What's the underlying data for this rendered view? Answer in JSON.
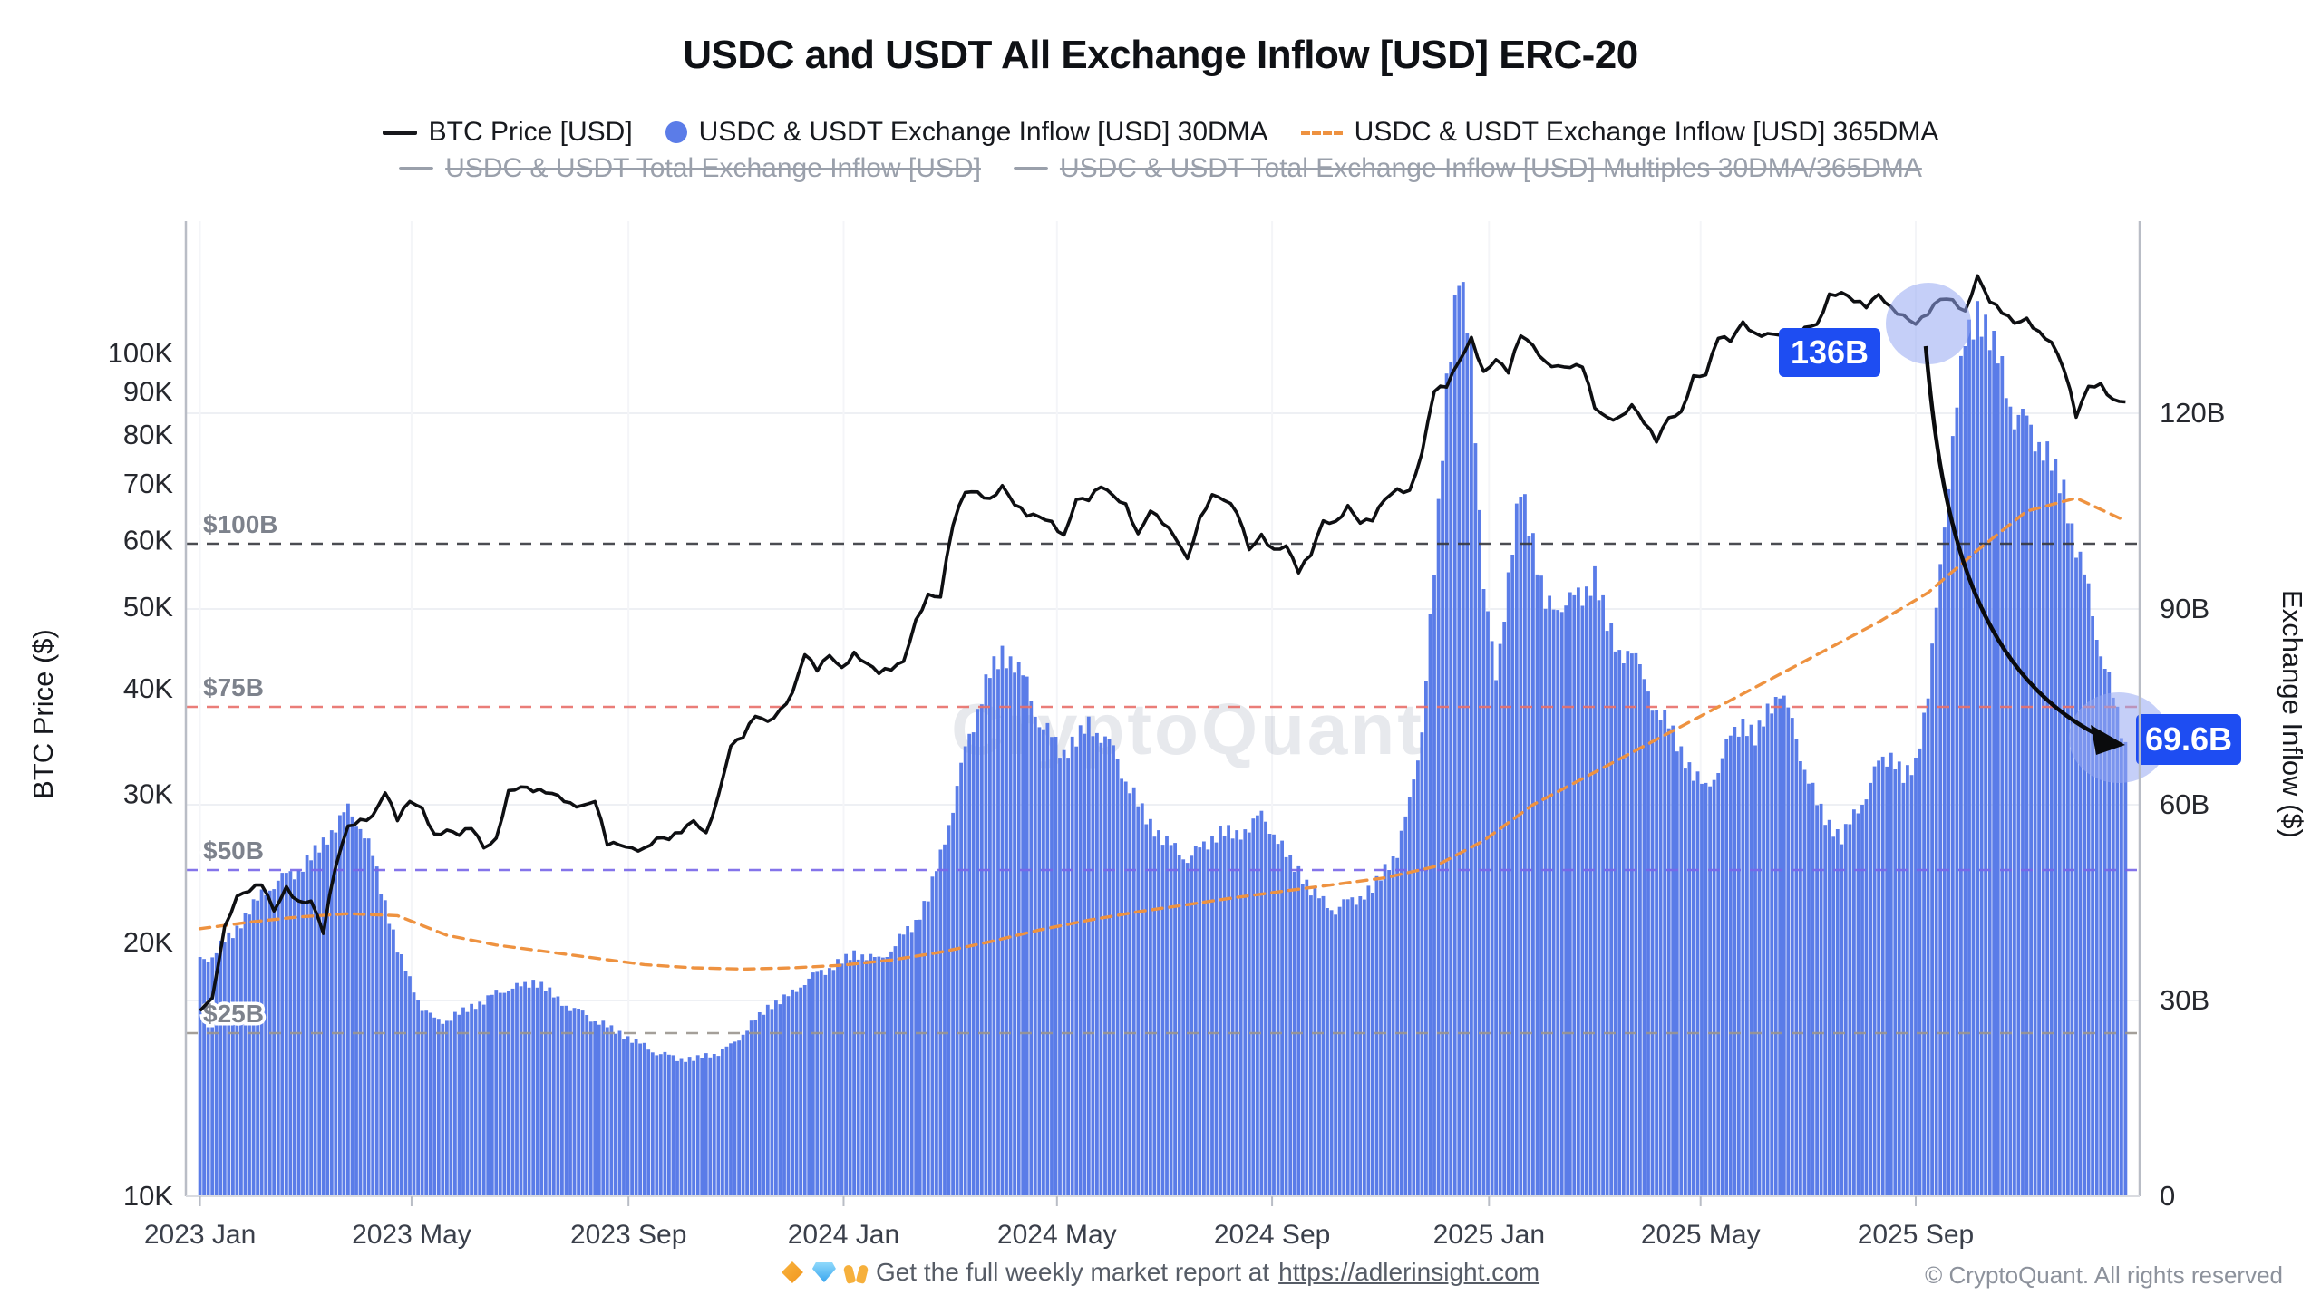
{
  "title": "USDC and USDT All Exchange Inflow [USD] ERC-20",
  "legend": {
    "items": [
      {
        "label": "BTC Price [USD]",
        "marker": "line",
        "color": "#17181c",
        "disabled": false
      },
      {
        "label": "USDC & USDT Exchange Inflow [USD] 30DMA",
        "marker": "circle",
        "color": "#5b7ce8",
        "disabled": false
      },
      {
        "label": "USDC & USDT Exchange Inflow [USD] 365DMA",
        "marker": "dashed-line",
        "color": "#ee9240",
        "disabled": false
      },
      {
        "label": "USDC & USDT Total Exchange Inflow [USD]",
        "marker": "line",
        "color": "#9aa0ab",
        "disabled": true
      },
      {
        "label": "USDC & USDT Total Exchange Inflow [USD] Multiples 30DMA/365DMA",
        "marker": "line",
        "color": "#9aa0ab",
        "disabled": true
      }
    ]
  },
  "left_axis": {
    "title": "BTC Price ($)",
    "scale": "log",
    "tick_labels": [
      "10K",
      "20K",
      "30K",
      "40K",
      "50K",
      "60K",
      "70K",
      "80K",
      "90K",
      "100K"
    ],
    "tick_values": [
      10,
      20,
      30,
      40,
      50,
      60,
      70,
      80,
      90,
      100
    ]
  },
  "right_axis": {
    "title": "Exchange Inflow ($)",
    "tick_labels": [
      "0",
      "30B",
      "60B",
      "90B",
      "120B"
    ],
    "tick_values": [
      0,
      30,
      60,
      90,
      120
    ]
  },
  "x_axis": {
    "tick_labels": [
      "2023 Jan",
      "2023 May",
      "2023 Sep",
      "2024 Jan",
      "2024 May",
      "2024 Sep",
      "2025 Jan",
      "2025 May",
      "2025 Sep"
    ],
    "tick_day_offsets": [
      0,
      120,
      243,
      365,
      486,
      608,
      731,
      851,
      973
    ]
  },
  "thresholds": [
    {
      "label": "$100B",
      "value": 100,
      "color": "#37393f"
    },
    {
      "label": "$75B",
      "value": 75,
      "color": "#e8706a"
    },
    {
      "label": "$50B",
      "value": 50,
      "color": "#7766e8"
    },
    {
      "label": "$25B",
      "value": 25,
      "color": "#9b958f"
    }
  ],
  "annotations": {
    "peak": {
      "label": "136B",
      "value": 136,
      "badge_color": "#1e4df2"
    },
    "latest": {
      "label": "69.6B",
      "value": 69.6,
      "badge_color": "#1e4df2"
    }
  },
  "watermark": "CryptoQuant",
  "footer": {
    "icons": [
      "orange-diamond",
      "gem",
      "raising-hands"
    ],
    "text": "Get the full weekly market report at",
    "link": "https://adlerinsight.com",
    "copyright": "© CryptoQuant. All rights reserved"
  },
  "chart_data": {
    "type": "mixed",
    "x_start": "2023-01-01",
    "x_end": "2025-12-28",
    "grid": "horizontal",
    "legend_position": "top",
    "left_range_k": [
      10,
      140
    ],
    "right_range_b": [
      0,
      150
    ],
    "series": [
      {
        "name": "BTC Price [USD]",
        "type": "line",
        "axis": "left",
        "unit": "thousand USD",
        "interval_days": 7,
        "color": "#0e0f12",
        "values": [
          16.6,
          17.2,
          20.9,
          22.7,
          23.0,
          23.4,
          21.8,
          23.3,
          22.4,
          22.4,
          20.5,
          24.6,
          27.5,
          28.0,
          28.3,
          30.1,
          27.9,
          29.4,
          28.9,
          26.9,
          27.2,
          26.8,
          27.3,
          25.9,
          26.6,
          30.3,
          30.6,
          30.2,
          30.1,
          29.9,
          29.3,
          29.1,
          29.4,
          26.1,
          26.1,
          25.9,
          25.9,
          26.6,
          26.5,
          27.0,
          27.9,
          27.0,
          29.9,
          34.2,
          35.0,
          37.1,
          36.6,
          37.8,
          39.6,
          43.9,
          42.0,
          43.8,
          42.4,
          44.2,
          42.9,
          41.7,
          42.1,
          43.1,
          48.3,
          51.8,
          51.4,
          62.5,
          68.4,
          68.5,
          67.3,
          69.7,
          66.1,
          64.1,
          64.0,
          63.2,
          60.9,
          67.1,
          66.9,
          69.4,
          67.8,
          66.3,
          61.1,
          65.0,
          62.8,
          60.4,
          57.1,
          63.8,
          68.0,
          66.9,
          64.7,
          58.5,
          61.0,
          58.6,
          59.1,
          54.9,
          57.6,
          63.3,
          63.2,
          66.0,
          62.9,
          63.3,
          67.1,
          69.1,
          68.8,
          76.2,
          90.1,
          91.2,
          97.8,
          104.5,
          95.2,
          98.3,
          94.8,
          104.9,
          102.2,
          97.8,
          96.7,
          96.2,
          96.3,
          86.1,
          84.0,
          84.1,
          86.9,
          82.6,
          78.5,
          83.9,
          85.3,
          94.1,
          94.3,
          104.2,
          103.3,
          109.0,
          105.7,
          105.6,
          105.1,
          101.2,
          107.4,
          108.3,
          117.6,
          118.1,
          115.2,
          113.3,
          117.5,
          113.6,
          111.1,
          108.3,
          111.2,
          115.9,
          115.8,
          112.3,
          123.6,
          115.1,
          111.6,
          108.6,
          110.1,
          106.2,
          103.1,
          95.7,
          84.0,
          91.4,
          92.1,
          88.2,
          87.6
        ]
      },
      {
        "name": "USDC & USDT Exchange Inflow [USD] 30DMA",
        "type": "bar",
        "axis": "right",
        "unit": "billion USD",
        "interval_days": 7,
        "color": "#5a7ce8",
        "values": [
          36,
          37,
          39,
          41,
          44,
          46,
          48,
          49,
          50,
          52,
          54,
          57,
          59,
          57,
          52,
          45,
          38,
          33,
          29,
          27,
          27,
          28,
          29,
          30,
          31,
          32,
          32,
          33,
          32,
          30,
          29,
          28,
          27,
          26,
          25,
          24,
          23,
          22,
          21.5,
          21,
          21,
          21.5,
          22,
          23,
          25,
          27,
          29,
          30,
          31,
          33,
          34,
          35,
          36,
          37,
          37,
          36,
          38,
          40,
          42,
          46,
          52,
          60,
          68,
          75,
          80,
          83,
          82,
          78,
          73,
          70,
          68,
          70,
          72,
          71,
          68,
          64,
          60,
          57,
          55,
          53,
          52,
          53,
          55,
          56,
          55,
          57,
          58,
          56,
          52,
          50,
          47,
          45,
          44,
          45,
          46,
          47,
          50,
          53,
          60,
          72,
          95,
          125,
          142,
          128,
          95,
          78,
          96,
          108,
          100,
          92,
          88,
          94,
          90,
          96,
          88,
          82,
          85,
          78,
          75,
          72,
          68,
          65,
          62,
          66,
          70,
          73,
          70,
          74,
          78,
          72,
          66,
          60,
          57,
          55,
          58,
          62,
          66,
          68,
          64,
          66,
          78,
          95,
          118,
          130,
          136,
          132,
          126,
          120,
          118,
          116,
          112,
          108,
          100,
          92,
          84,
          76,
          69.6
        ]
      },
      {
        "name": "USDC & USDT Exchange Inflow [USD] 365DMA",
        "type": "dashed-line",
        "axis": "right",
        "unit": "billion USD",
        "interval_days": 28,
        "color": "#ee9240",
        "values": [
          41.0,
          42.0,
          42.8,
          43.3,
          43.0,
          40.0,
          38.5,
          37.5,
          36.5,
          35.5,
          35.0,
          34.8,
          35.0,
          35.4,
          36.2,
          37.4,
          39.0,
          40.8,
          42.3,
          43.6,
          44.7,
          45.8,
          46.8,
          47.8,
          48.8,
          50.5,
          54.5,
          60.0,
          64.0,
          68.0,
          72.0,
          76.0,
          80.0,
          84.0,
          88.0,
          92.5,
          99.0,
          105.0,
          107.0,
          103.5
        ]
      },
      {
        "name": "USDC & USDT Total Exchange Inflow [USD]",
        "type": "hidden",
        "axis": "right",
        "values": []
      },
      {
        "name": "USDC & USDT Total Exchange Inflow [USD] Multiples 30DMA/365DMA",
        "type": "hidden",
        "axis": "right",
        "values": []
      }
    ],
    "annotations": [
      {
        "label": "136B",
        "value_b": 136,
        "target": "2025 inflow peak"
      },
      {
        "label": "69.6B",
        "value_b": 69.6,
        "target": "latest inflow value"
      }
    ]
  }
}
